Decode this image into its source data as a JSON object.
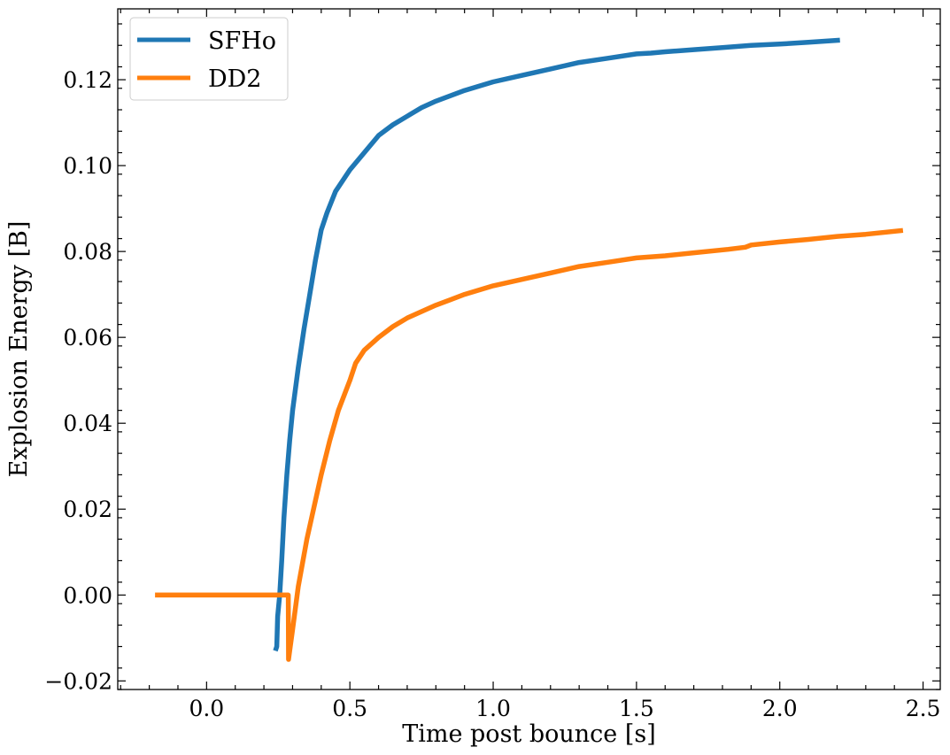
{
  "chart_data": {
    "type": "line",
    "xlabel": "Time post bounce [s]",
    "ylabel": "Explosion Energy [B]",
    "xlim": [
      -0.31,
      2.56
    ],
    "ylim": [
      -0.022,
      0.1365
    ],
    "xticks": [
      0.0,
      0.5,
      1.0,
      1.5,
      2.0,
      2.5
    ],
    "xtick_labels": [
      "0.0",
      "0.5",
      "1.0",
      "1.5",
      "2.0",
      "2.5"
    ],
    "yticks": [
      -0.02,
      0.0,
      0.02,
      0.04,
      0.06,
      0.08,
      0.1,
      0.12
    ],
    "ytick_labels": [
      "−0.02",
      "0.00",
      "0.02",
      "0.04",
      "0.06",
      "0.08",
      "0.10",
      "0.12"
    ],
    "grid": false,
    "legend": "top-left",
    "series": [
      {
        "name": "SFHo",
        "color": "#1f77b4",
        "x": [
          0.24,
          0.245,
          0.248,
          0.255,
          0.262,
          0.27,
          0.28,
          0.29,
          0.3,
          0.32,
          0.34,
          0.36,
          0.38,
          0.4,
          0.42,
          0.45,
          0.48,
          0.5,
          0.55,
          0.6,
          0.65,
          0.7,
          0.75,
          0.8,
          0.9,
          1.0,
          1.1,
          1.2,
          1.3,
          1.4,
          1.5,
          1.55,
          1.6,
          1.7,
          1.8,
          1.9,
          2.0,
          2.1,
          2.21
        ],
        "y": [
          -0.013,
          -0.012,
          -0.005,
          0.0,
          0.008,
          0.018,
          0.028,
          0.036,
          0.043,
          0.053,
          0.062,
          0.07,
          0.078,
          0.085,
          0.089,
          0.094,
          0.097,
          0.099,
          0.103,
          0.107,
          0.1095,
          0.1115,
          0.1135,
          0.115,
          0.1175,
          0.1195,
          0.121,
          0.1225,
          0.124,
          0.125,
          0.126,
          0.1262,
          0.1265,
          0.127,
          0.1275,
          0.128,
          0.1283,
          0.1287,
          0.1292
        ]
      },
      {
        "name": "DD2",
        "color": "#ff7f0e",
        "x": [
          -0.18,
          0.0,
          0.1,
          0.2,
          0.27,
          0.285,
          0.286,
          0.29,
          0.3,
          0.32,
          0.35,
          0.38,
          0.4,
          0.43,
          0.46,
          0.5,
          0.52,
          0.55,
          0.6,
          0.65,
          0.7,
          0.8,
          0.9,
          1.0,
          1.1,
          1.2,
          1.3,
          1.4,
          1.5,
          1.6,
          1.7,
          1.82,
          1.88,
          1.9,
          2.0,
          2.1,
          2.2,
          2.3,
          2.43
        ],
        "y": [
          0.0,
          0.0,
          0.0,
          0.0,
          0.0,
          0.0,
          -0.015,
          -0.013,
          -0.008,
          0.002,
          0.013,
          0.022,
          0.028,
          0.036,
          0.043,
          0.05,
          0.054,
          0.057,
          0.06,
          0.0625,
          0.0645,
          0.0675,
          0.07,
          0.072,
          0.0735,
          0.075,
          0.0765,
          0.0775,
          0.0785,
          0.079,
          0.0797,
          0.0805,
          0.081,
          0.0815,
          0.0822,
          0.0828,
          0.0835,
          0.084,
          0.0849
        ]
      }
    ]
  }
}
